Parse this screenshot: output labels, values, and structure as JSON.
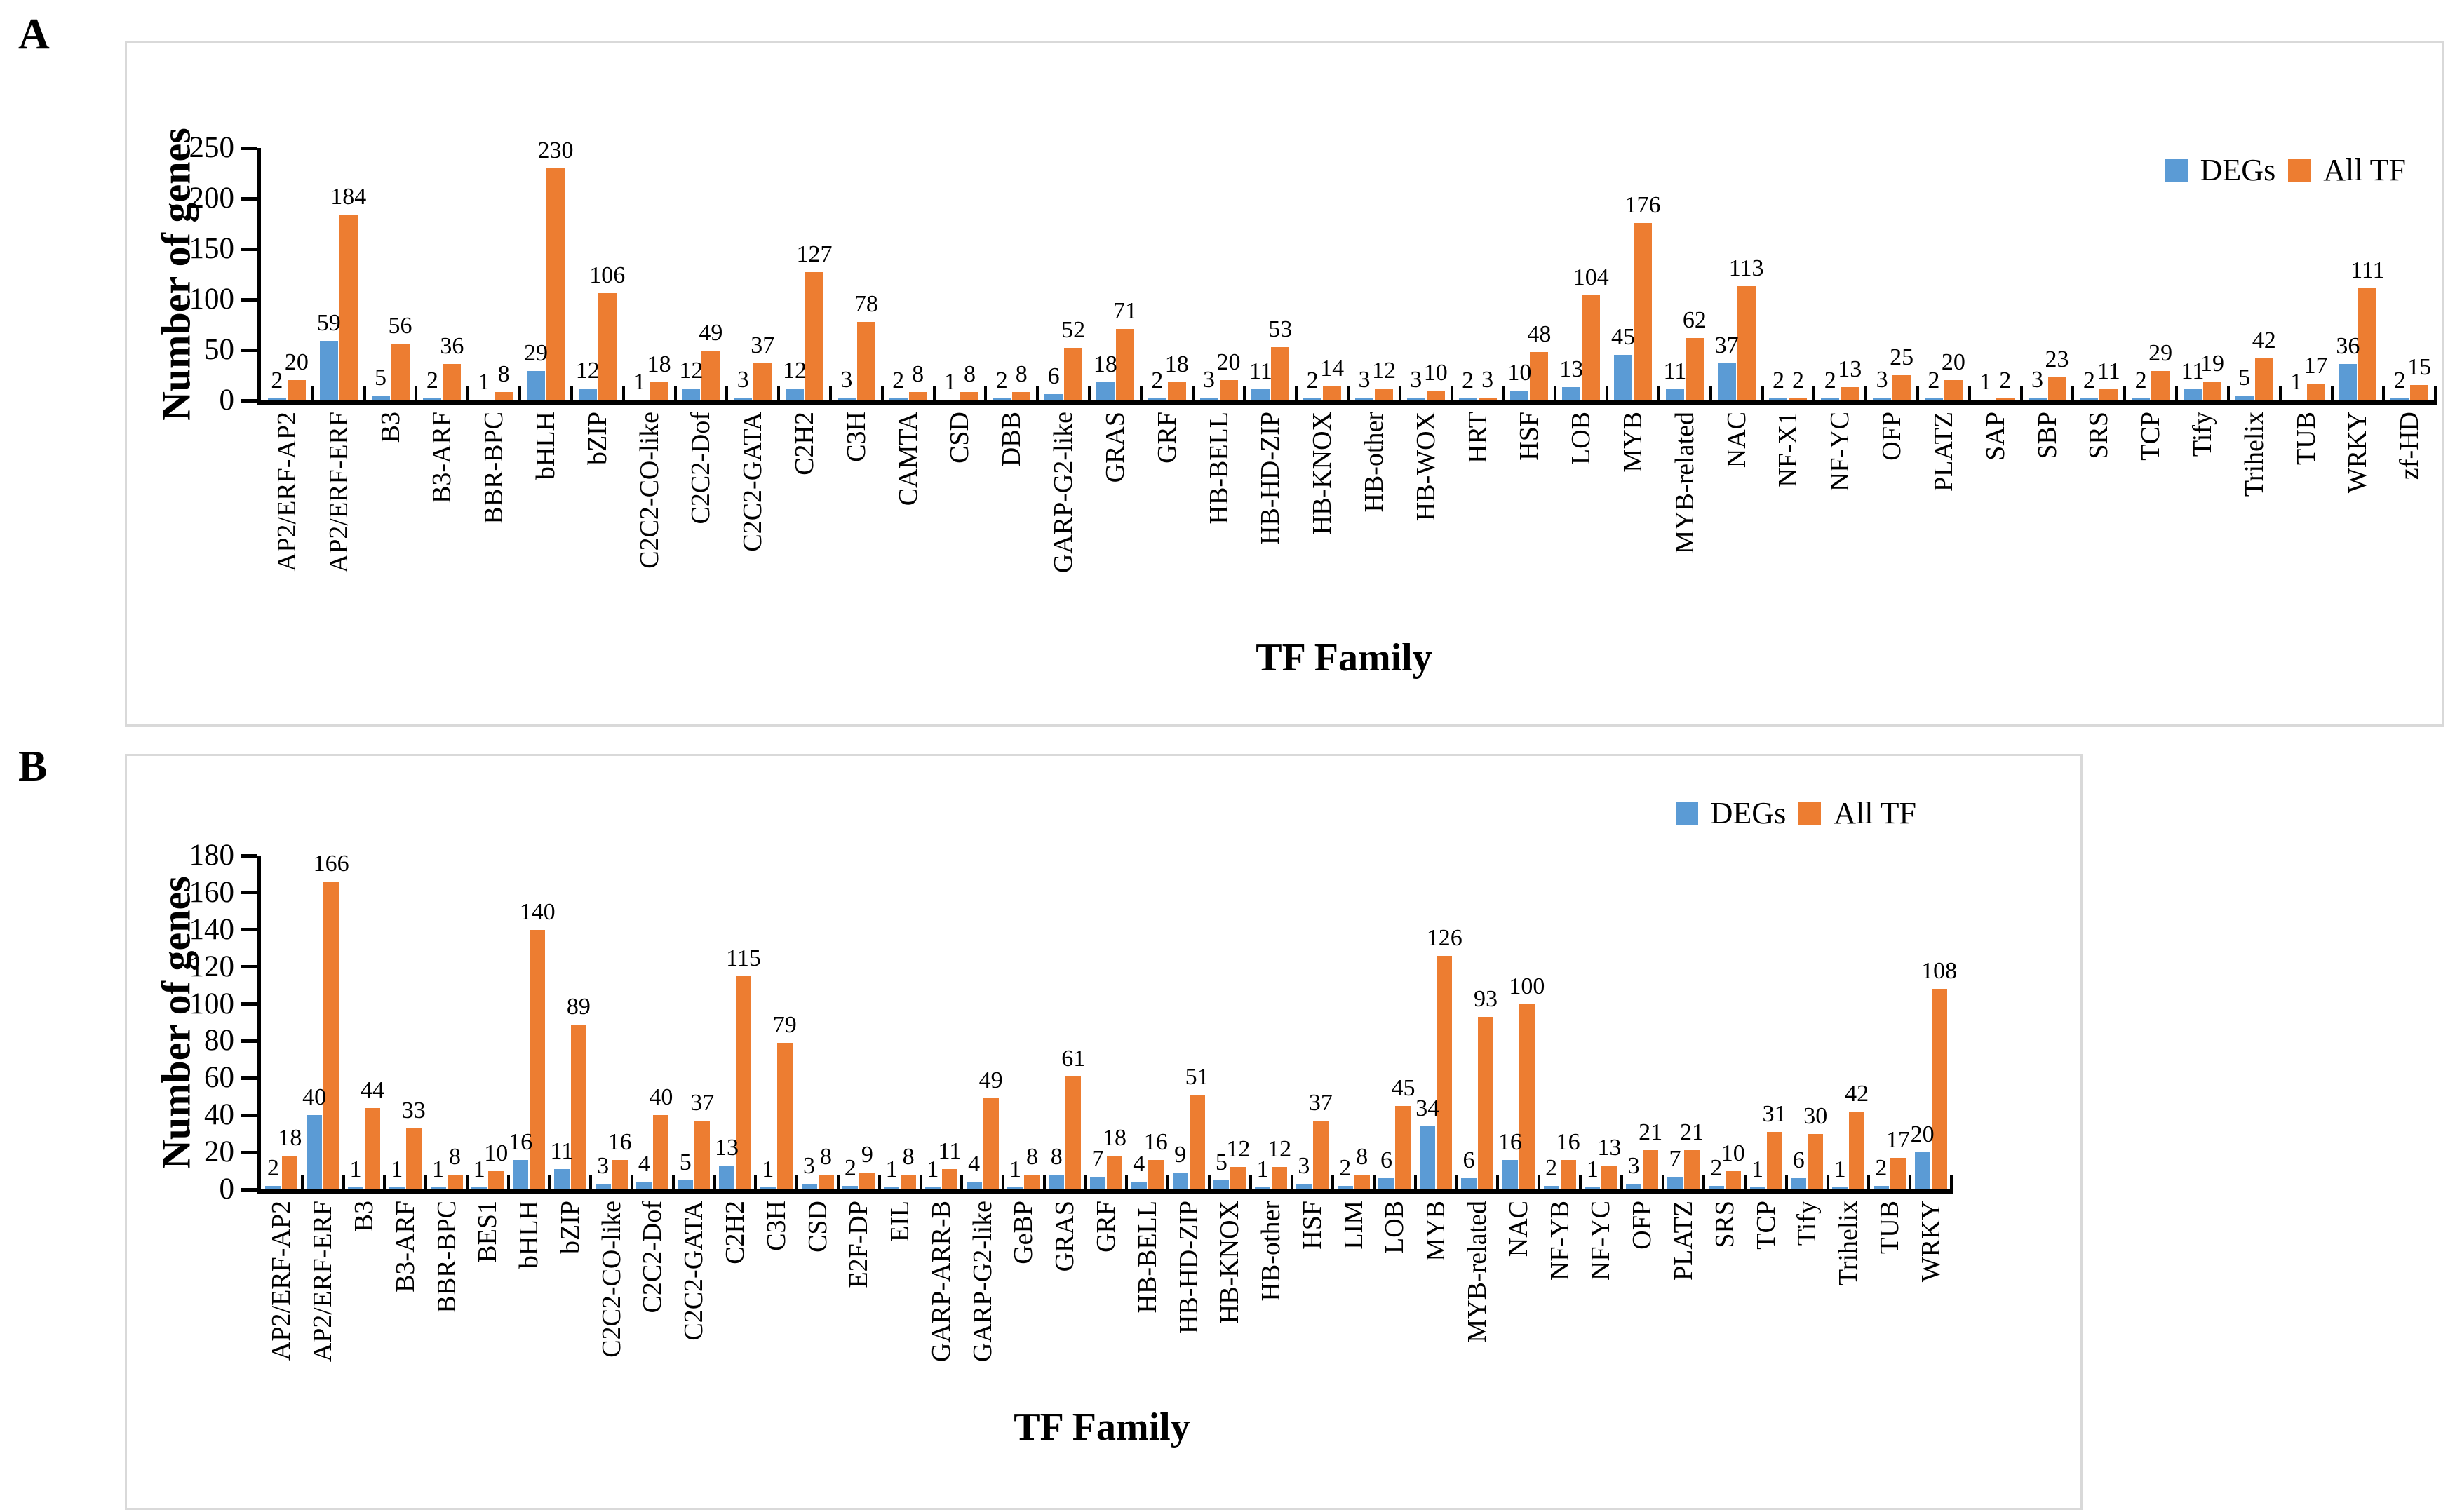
{
  "panels": [
    {
      "letter": "A"
    },
    {
      "letter": "B"
    }
  ],
  "colors": {
    "degs": "#5B9BD5",
    "alltf": "#ED7D31",
    "axis": "#000000",
    "frame_border": "#d9d9d9"
  },
  "chart_data": [
    {
      "panel": "A",
      "type": "bar",
      "title": "",
      "ylabel": "Number of genes",
      "xlabel": "TF Family",
      "legend": [
        "DEGs",
        "All TF"
      ],
      "legend_position": "top-right",
      "grid": false,
      "ylim": [
        0,
        250
      ],
      "yticks": [
        0,
        50,
        100,
        150,
        200,
        250
      ],
      "categories": [
        "AP2/ERF-AP2",
        "AP2/ERF-ERF",
        "B3",
        "B3-ARF",
        "BBR-BPC",
        "bHLH",
        "bZIP",
        "C2C2-CO-like",
        "C2C2-Dof",
        "C2C2-GATA",
        "C2H2",
        "C3H",
        "CAMTA",
        "CSD",
        "DBB",
        "GARP-G2-like",
        "GRAS",
        "GRF",
        "HB-BELL",
        "HB-HD-ZIP",
        "HB-KNOX",
        "HB-other",
        "HB-WOX",
        "HRT",
        "HSF",
        "LOB",
        "MYB",
        "MYB-related",
        "NAC",
        "NF-X1",
        "NF-YC",
        "OFP",
        "PLATZ",
        "SAP",
        "SBP",
        "SRS",
        "TCP",
        "Tify",
        "Trihelix",
        "TUB",
        "WRKY",
        "zf-HD"
      ],
      "series": [
        {
          "name": "DEGs",
          "values": [
            2,
            59,
            5,
            2,
            1,
            29,
            12,
            1,
            12,
            3,
            12,
            3,
            2,
            1,
            2,
            6,
            18,
            2,
            3,
            11,
            2,
            3,
            3,
            2,
            10,
            13,
            45,
            11,
            37,
            2,
            2,
            3,
            2,
            1,
            3,
            2,
            2,
            11,
            5,
            1,
            36,
            2
          ]
        },
        {
          "name": "All TF",
          "values": [
            20,
            184,
            56,
            36,
            8,
            230,
            106,
            18,
            49,
            37,
            127,
            78,
            8,
            8,
            8,
            52,
            71,
            18,
            20,
            53,
            14,
            12,
            10,
            3,
            48,
            104,
            176,
            62,
            113,
            2,
            13,
            25,
            20,
            2,
            23,
            11,
            29,
            19,
            42,
            17,
            111,
            15
          ]
        }
      ]
    },
    {
      "panel": "B",
      "type": "bar",
      "title": "",
      "ylabel": "Number of genes",
      "xlabel": "TF Family",
      "legend": [
        "DEGs",
        "All TF"
      ],
      "legend_position": "top-right",
      "grid": false,
      "ylim": [
        0,
        180
      ],
      "yticks": [
        0,
        20,
        40,
        60,
        80,
        100,
        120,
        140,
        160,
        180
      ],
      "categories": [
        "AP2/ERF-AP2",
        "AP2/ERF-ERF",
        "B3",
        "B3-ARF",
        "BBR-BPC",
        "BES1",
        "bHLH",
        "bZIP",
        "C2C2-CO-like",
        "C2C2-Dof",
        "C2C2-GATA",
        "C2H2",
        "C3H",
        "CSD",
        "E2F-DP",
        "EIL",
        "GARP-ARR-B",
        "GARP-G2-like",
        "GeBP",
        "GRAS",
        "GRF",
        "HB-BELL",
        "HB-HD-ZIP",
        "HB-KNOX",
        "HB-other",
        "HSF",
        "LIM",
        "LOB",
        "MYB",
        "MYB-related",
        "NAC",
        "NF-YB",
        "NF-YC",
        "OFP",
        "PLATZ",
        "SRS",
        "TCP",
        "Tify",
        "Trihelix",
        "TUB",
        "WRKY"
      ],
      "series": [
        {
          "name": "DEGs",
          "values": [
            2,
            40,
            1,
            1,
            1,
            1,
            16,
            11,
            3,
            4,
            5,
            13,
            1,
            3,
            2,
            1,
            1,
            4,
            1,
            8,
            7,
            4,
            9,
            5,
            1,
            3,
            2,
            6,
            34,
            6,
            16,
            2,
            1,
            3,
            7,
            2,
            1,
            6,
            1,
            2,
            20
          ]
        },
        {
          "name": "All TF",
          "values": [
            18,
            166,
            44,
            33,
            8,
            10,
            140,
            89,
            16,
            40,
            37,
            115,
            79,
            8,
            9,
            8,
            11,
            49,
            8,
            61,
            18,
            16,
            51,
            12,
            12,
            37,
            8,
            45,
            126,
            93,
            100,
            16,
            13,
            21,
            21,
            10,
            31,
            30,
            42,
            17,
            108
          ]
        }
      ]
    }
  ]
}
